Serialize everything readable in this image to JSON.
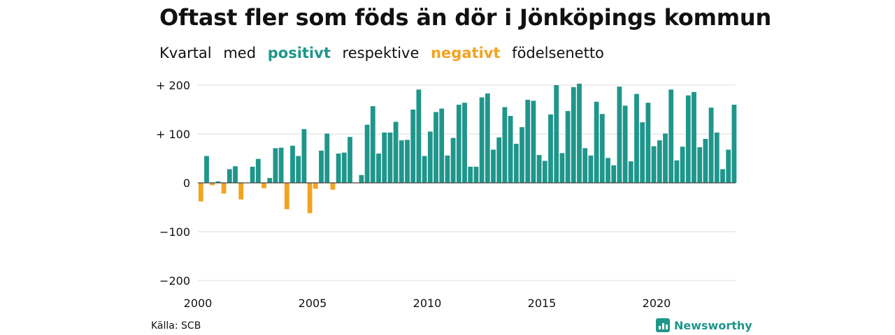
{
  "title": "Oftast fler som föds än dör i Jönköpings kommun",
  "subtitle": {
    "part1": "Kvartal",
    "part2": "med",
    "positive": "positivt",
    "part3": "respektive",
    "negative": "negativt",
    "part4": "födelsenetto"
  },
  "source": "Källa: SCB",
  "brand": {
    "name": "Newsworthy",
    "icon": "newsworthy-logo-icon"
  },
  "colors": {
    "positive": "#1f968b",
    "negative": "#f2a322",
    "grid": "#dddddd",
    "zero": "#444444",
    "brand": "#1f968b"
  },
  "chart_data": {
    "type": "bar",
    "x_start_year": 2000,
    "quarters_per_year": 4,
    "x_tick_labels": [
      "2000",
      "2005",
      "2010",
      "2015",
      "2020"
    ],
    "y_tick_labels": [
      "+ 200",
      "+ 100",
      "0",
      "−100",
      "−200"
    ],
    "y_ticks": [
      200,
      100,
      0,
      -100,
      -200
    ],
    "ylim": [
      -200,
      200
    ],
    "grid": true,
    "values": [
      -38,
      55,
      -5,
      3,
      -22,
      28,
      34,
      -34,
      0,
      33,
      49,
      -11,
      10,
      71,
      72,
      -54,
      76,
      55,
      110,
      -62,
      -12,
      66,
      101,
      -14,
      60,
      62,
      94,
      0,
      16,
      119,
      157,
      60,
      103,
      103,
      125,
      87,
      88,
      150,
      191,
      55,
      105,
      145,
      152,
      56,
      92,
      160,
      164,
      33,
      33,
      175,
      183,
      68,
      93,
      155,
      137,
      80,
      114,
      170,
      168,
      57,
      45,
      140,
      200,
      61,
      147,
      196,
      203,
      71,
      56,
      166,
      141,
      51,
      36,
      197,
      158,
      44,
      182,
      124,
      164,
      75,
      87,
      101,
      191,
      46,
      74,
      179,
      186,
      73,
      90,
      154,
      103,
      28,
      68,
      160
    ]
  }
}
